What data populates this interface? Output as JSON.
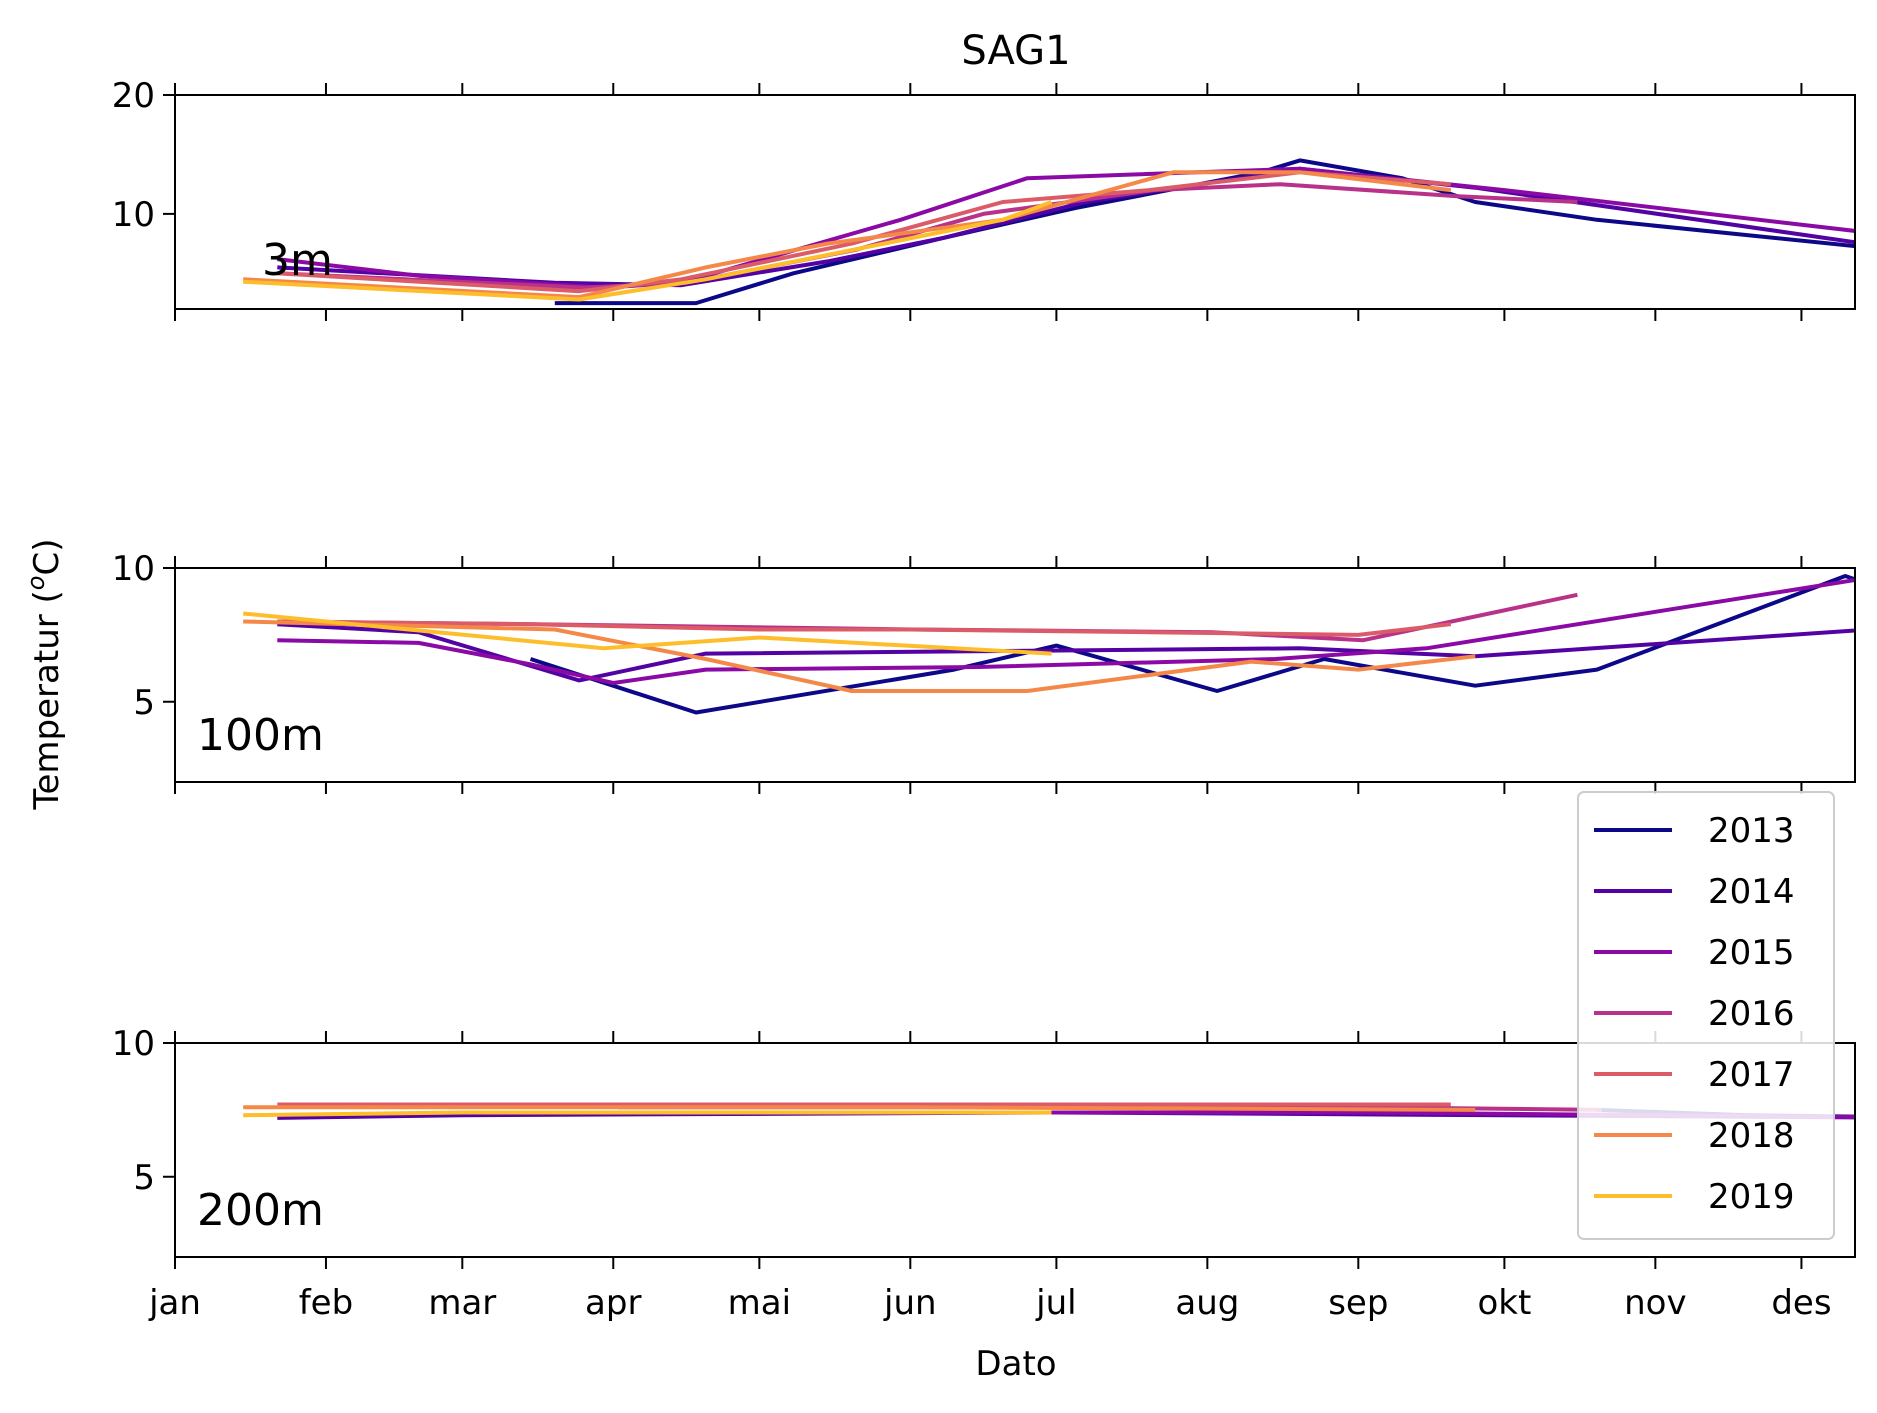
{
  "chart_data": {
    "type": "line",
    "title": "SAG1",
    "xlabel": "Dato",
    "ylabel": "Temperatur (",
    "ylabel_super": "o",
    "ylabel_end": "C)",
    "x_ticks": [
      "jan",
      "feb",
      "mar",
      "apr",
      "mai",
      "jun",
      "jul",
      "aug",
      "sep",
      "okt",
      "nov",
      "des"
    ],
    "x_tick_days": [
      1,
      32,
      60,
      91,
      121,
      152,
      182,
      213,
      244,
      274,
      305,
      335
    ],
    "xlim": [
      1,
      346
    ],
    "legend": {
      "placement": "lower-right",
      "entries": [
        "2013",
        "2014",
        "2015",
        "2016",
        "2017",
        "2018",
        "2019"
      ]
    },
    "colors": {
      "2013": "#0d0887",
      "2014": "#5302a3",
      "2015": "#8b0aa5",
      "2016": "#b83289",
      "2017": "#db5c68",
      "2018": "#f48849",
      "2019": "#febd2a"
    },
    "panels": [
      {
        "label": "3m",
        "ylim": [
          2,
          20
        ],
        "yticks": [
          10,
          20
        ],
        "series": [
          {
            "name": "2013",
            "points": [
              [
                "2013-03-20",
                2.5
              ],
              [
                "2013-04-18",
                2.5
              ],
              [
                "2013-05-08",
                5.0
              ],
              [
                "2013-06-08",
                8.0
              ],
              [
                "2013-07-05",
                10.5
              ],
              [
                "2013-08-12",
                13.5
              ],
              [
                "2013-08-20",
                14.5
              ],
              [
                "2013-09-10",
                13.0
              ],
              [
                "2013-09-25",
                11.0
              ],
              [
                "2013-10-20",
                9.5
              ],
              [
                "2013-12-31",
                6.5
              ]
            ]
          },
          {
            "name": "2014",
            "points": [
              [
                "2014-01-22",
                5.5
              ],
              [
                "2014-03-20",
                4.2
              ],
              [
                "2014-04-15",
                4.0
              ],
              [
                "2014-05-15",
                6.0
              ],
              [
                "2014-06-08",
                8.0
              ],
              [
                "2014-07-07",
                11.0
              ],
              [
                "2014-08-20",
                13.8
              ],
              [
                "2014-09-25",
                12.2
              ],
              [
                "2014-12-31",
                6.5
              ]
            ]
          },
          {
            "name": "2015",
            "points": [
              [
                "2015-01-22",
                6.2
              ],
              [
                "2015-02-20",
                4.8
              ],
              [
                "2015-03-30",
                3.8
              ],
              [
                "2015-04-15",
                4.2
              ],
              [
                "2015-05-30",
                9.5
              ],
              [
                "2015-06-25",
                13.0
              ],
              [
                "2015-08-20",
                13.8
              ],
              [
                "2015-10-01",
                12.0
              ],
              [
                "2015-12-28",
                7.8
              ]
            ]
          },
          {
            "name": "2016",
            "points": [
              [
                "2016-01-22",
                5.0
              ],
              [
                "2016-03-25",
                3.8
              ],
              [
                "2016-04-15",
                4.2
              ],
              [
                "2016-05-20",
                7.0
              ],
              [
                "2016-06-15",
                10.0
              ],
              [
                "2016-07-20",
                12.0
              ],
              [
                "2016-08-15",
                12.5
              ],
              [
                "2016-09-20",
                11.5
              ],
              [
                "2016-10-15",
                11.0
              ]
            ]
          },
          {
            "name": "2017",
            "points": [
              [
                "2017-01-22",
                5.0
              ],
              [
                "2017-03-25",
                3.5
              ],
              [
                "2017-04-15",
                4.5
              ],
              [
                "2017-05-20",
                7.5
              ],
              [
                "2017-06-20",
                11.0
              ],
              [
                "2017-07-20",
                12.0
              ],
              [
                "2017-08-20",
                13.5
              ],
              [
                "2017-09-20",
                12.5
              ]
            ]
          },
          {
            "name": "2018",
            "points": [
              [
                "2018-01-15",
                4.5
              ],
              [
                "2018-03-25",
                3.0
              ],
              [
                "2018-04-20",
                5.5
              ],
              [
                "2018-05-15",
                7.5
              ],
              [
                "2018-06-20",
                9.5
              ],
              [
                "2018-07-25",
                13.5
              ],
              [
                "2018-08-20",
                13.5
              ],
              [
                "2018-09-20",
                12.0
              ]
            ]
          },
          {
            "name": "2019",
            "points": [
              [
                "2019-01-15",
                4.3
              ],
              [
                "2019-03-25",
                2.8
              ],
              [
                "2019-04-20",
                4.5
              ],
              [
                "2019-06-20",
                9.5
              ],
              [
                "2019-06-30",
                11.0
              ]
            ]
          }
        ]
      },
      {
        "label": "100m",
        "ylim": [
          2,
          10
        ],
        "yticks": [
          5,
          10
        ],
        "series": [
          {
            "name": "2013",
            "points": [
              [
                "2013-03-15",
                6.6
              ],
              [
                "2013-04-18",
                4.6
              ],
              [
                "2013-06-10",
                6.2
              ],
              [
                "2013-07-01",
                7.1
              ],
              [
                "2013-08-03",
                5.4
              ],
              [
                "2013-08-25",
                6.6
              ],
              [
                "2013-09-25",
                5.6
              ],
              [
                "2013-10-20",
                6.2
              ],
              [
                "2013-12-10",
                9.7
              ],
              [
                "2013-12-31",
                8.4
              ]
            ]
          },
          {
            "name": "2014",
            "points": [
              [
                "2014-01-22",
                7.9
              ],
              [
                "2014-02-20",
                7.6
              ],
              [
                "2014-03-25",
                5.8
              ],
              [
                "2014-04-20",
                6.8
              ],
              [
                "2014-08-20",
                7.0
              ],
              [
                "2014-09-25",
                6.7
              ],
              [
                "2014-12-31",
                7.9
              ]
            ]
          },
          {
            "name": "2015",
            "points": [
              [
                "2015-01-22",
                7.3
              ],
              [
                "2015-02-20",
                7.2
              ],
              [
                "2015-03-15",
                6.4
              ],
              [
                "2015-04-01",
                5.7
              ],
              [
                "2015-04-20",
                6.2
              ],
              [
                "2015-06-15",
                6.3
              ],
              [
                "2015-08-15",
                6.6
              ],
              [
                "2015-09-15",
                7.0
              ],
              [
                "2015-12-31",
                10.1
              ]
            ]
          },
          {
            "name": "2016",
            "points": [
              [
                "2016-01-22",
                8.0
              ],
              [
                "2016-03-15",
                7.9
              ],
              [
                "2016-06-01",
                7.7
              ],
              [
                "2016-08-01",
                7.6
              ],
              [
                "2016-09-01",
                7.3
              ],
              [
                "2016-10-15",
                9.0
              ]
            ]
          },
          {
            "name": "2017",
            "points": [
              [
                "2017-01-22",
                8.0
              ],
              [
                "2017-03-15",
                7.9
              ],
              [
                "2017-05-01",
                7.7
              ],
              [
                "2017-06-01",
                7.7
              ],
              [
                "2017-07-20",
                7.6
              ],
              [
                "2017-09-01",
                7.5
              ],
              [
                "2017-09-20",
                7.9
              ]
            ]
          },
          {
            "name": "2018",
            "points": [
              [
                "2018-01-15",
                8.0
              ],
              [
                "2018-03-20",
                7.7
              ],
              [
                "2018-04-20",
                6.6
              ],
              [
                "2018-05-20",
                5.4
              ],
              [
                "2018-06-25",
                5.4
              ],
              [
                "2018-08-10",
                6.5
              ],
              [
                "2018-09-01",
                6.2
              ],
              [
                "2018-09-25",
                6.7
              ]
            ]
          },
          {
            "name": "2019",
            "points": [
              [
                "2019-01-15",
                8.3
              ],
              [
                "2019-03-30",
                7.0
              ],
              [
                "2019-05-01",
                7.4
              ],
              [
                "2019-06-30",
                6.8
              ]
            ]
          }
        ]
      },
      {
        "label": "200m",
        "ylim": [
          2,
          10
        ],
        "yticks": [
          5,
          10
        ],
        "series": [
          {
            "name": "2013",
            "points": [
              [
                "2013-10-20",
                7.5
              ],
              [
                "2013-11-20",
                7.3
              ],
              [
                "2013-12-31",
                7.2
              ]
            ]
          },
          {
            "name": "2014",
            "points": [
              [
                "2014-01-22",
                7.2
              ],
              [
                "2014-03-01",
                7.3
              ],
              [
                "2014-07-01",
                7.4
              ],
              [
                "2014-12-31",
                7.2
              ]
            ]
          },
          {
            "name": "2015",
            "points": [
              [
                "2015-03-01",
                7.4
              ],
              [
                "2015-09-01",
                7.4
              ],
              [
                "2015-12-31",
                7.2
              ]
            ]
          },
          {
            "name": "2016",
            "points": [
              [
                "2016-04-01",
                7.6
              ],
              [
                "2016-09-01",
                7.6
              ],
              [
                "2016-10-20",
                7.5
              ]
            ]
          },
          {
            "name": "2017",
            "points": [
              [
                "2017-01-22",
                7.7
              ],
              [
                "2017-05-01",
                7.7
              ],
              [
                "2017-09-20",
                7.7
              ]
            ]
          },
          {
            "name": "2018",
            "points": [
              [
                "2018-01-15",
                7.6
              ],
              [
                "2018-06-01",
                7.6
              ],
              [
                "2018-09-25",
                7.5
              ]
            ]
          },
          {
            "name": "2019",
            "points": [
              [
                "2019-01-15",
                7.3
              ],
              [
                "2019-03-01",
                7.4
              ],
              [
                "2019-06-30",
                7.4
              ]
            ]
          }
        ]
      }
    ]
  }
}
